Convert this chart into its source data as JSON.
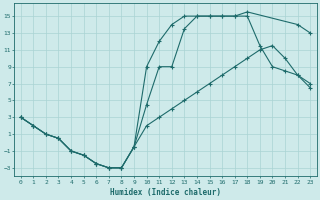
{
  "xlabel": "Humidex (Indice chaleur)",
  "bg_color": "#ceeaea",
  "line_color": "#1e6b6b",
  "grid_color": "#aad4d4",
  "xlim": [
    -0.5,
    23.5
  ],
  "ylim": [
    -4,
    16.5
  ],
  "xticks": [
    0,
    1,
    2,
    3,
    4,
    5,
    6,
    7,
    8,
    9,
    10,
    11,
    12,
    13,
    14,
    15,
    16,
    17,
    18,
    19,
    20,
    21,
    22,
    23
  ],
  "yticks": [
    -3,
    -1,
    1,
    3,
    5,
    7,
    9,
    11,
    13,
    15
  ],
  "line1": {
    "x": [
      0,
      1,
      2,
      3,
      4,
      5,
      6,
      7,
      8,
      9,
      10,
      11,
      12,
      13,
      14,
      15,
      16,
      17,
      18,
      22,
      23
    ],
    "y": [
      3,
      2,
      1,
      0.5,
      -1,
      -1.5,
      -2.5,
      -3,
      -3,
      -0.5,
      9,
      12,
      14,
      15,
      15,
      15,
      15,
      15,
      15.5,
      14,
      13
    ]
  },
  "line2": {
    "x": [
      0,
      1,
      2,
      3,
      4,
      5,
      6,
      7,
      8,
      9,
      10,
      11,
      12,
      13,
      14,
      15,
      16,
      17,
      18,
      19,
      20,
      21,
      22,
      23
    ],
    "y": [
      3,
      2,
      1,
      0.5,
      -1,
      -1.5,
      -2.5,
      -3,
      -3,
      -0.5,
      4.5,
      9,
      9,
      13.5,
      15,
      15,
      15,
      15,
      15,
      11.5,
      9,
      8.5,
      8,
      7
    ]
  },
  "line3": {
    "x": [
      0,
      1,
      2,
      3,
      4,
      5,
      6,
      7,
      8,
      9,
      10,
      11,
      12,
      13,
      14,
      15,
      16,
      17,
      18,
      19,
      20,
      21,
      22,
      23
    ],
    "y": [
      3,
      2,
      1,
      0.5,
      -1,
      -1.5,
      -2.5,
      -3,
      -3,
      -0.5,
      2,
      3,
      4,
      5,
      6,
      7,
      8,
      9,
      10,
      11,
      11.5,
      10,
      8,
      6.5
    ]
  }
}
